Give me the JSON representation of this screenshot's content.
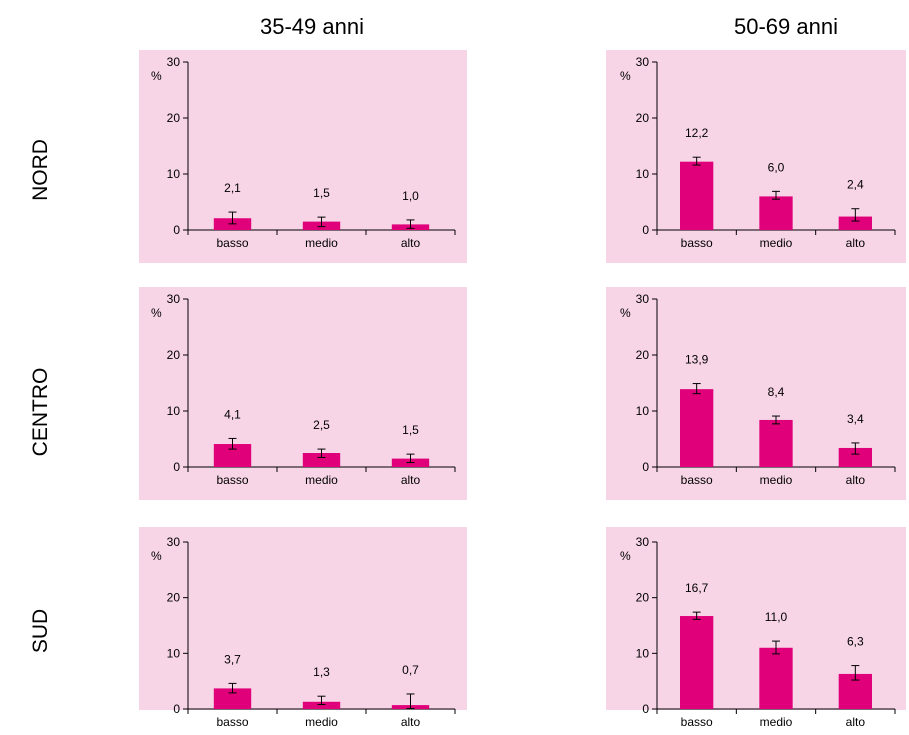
{
  "column_titles": [
    "35-49 anni",
    "50-69 anni"
  ],
  "row_labels": [
    "NORD",
    "CENTRO",
    "SUD"
  ],
  "colors": {
    "panel_bg": "#f7d5e7",
    "bar": "#e0007a",
    "axis": "#000000"
  },
  "chart_data": [
    {
      "type": "bar",
      "row": "NORD",
      "column": "35-49 anni",
      "unit": "%",
      "ylim": [
        0,
        30
      ],
      "yticks": [
        0,
        10,
        20,
        30
      ],
      "categories": [
        "basso",
        "medio",
        "alto"
      ],
      "values": [
        2.1,
        1.5,
        1.0
      ],
      "labels": [
        "2,1",
        "1,5",
        "1,0"
      ],
      "ci": [
        [
          1.1,
          3.2
        ],
        [
          0.6,
          2.3
        ],
        [
          0.3,
          1.8
        ]
      ]
    },
    {
      "type": "bar",
      "row": "NORD",
      "column": "50-69 anni",
      "unit": "%",
      "ylim": [
        0,
        30
      ],
      "yticks": [
        0,
        10,
        20,
        30
      ],
      "categories": [
        "basso",
        "medio",
        "alto"
      ],
      "values": [
        12.2,
        6.0,
        2.4
      ],
      "labels": [
        "12,2",
        "6,0",
        "2,4"
      ],
      "ci": [
        [
          11.6,
          13.0
        ],
        [
          5.5,
          6.9
        ],
        [
          1.6,
          3.8
        ]
      ]
    },
    {
      "type": "bar",
      "row": "CENTRO",
      "column": "35-49 anni",
      "unit": "%",
      "ylim": [
        0,
        30
      ],
      "yticks": [
        0,
        10,
        20,
        30
      ],
      "categories": [
        "basso",
        "medio",
        "alto"
      ],
      "values": [
        4.1,
        2.5,
        1.5
      ],
      "labels": [
        "4,1",
        "2,5",
        "1,5"
      ],
      "ci": [
        [
          3.2,
          5.1
        ],
        [
          1.7,
          3.2
        ],
        [
          0.8,
          2.3
        ]
      ]
    },
    {
      "type": "bar",
      "row": "CENTRO",
      "column": "50-69 anni",
      "unit": "%",
      "ylim": [
        0,
        30
      ],
      "yticks": [
        0,
        10,
        20,
        30
      ],
      "categories": [
        "basso",
        "medio",
        "alto"
      ],
      "values": [
        13.9,
        8.4,
        3.4
      ],
      "labels": [
        "13,9",
        "8,4",
        "3,4"
      ],
      "ci": [
        [
          13.1,
          14.9
        ],
        [
          7.7,
          9.1
        ],
        [
          2.3,
          4.3
        ]
      ]
    },
    {
      "type": "bar",
      "row": "SUD",
      "column": "35-49 anni",
      "unit": "%",
      "ylim": [
        0,
        30
      ],
      "yticks": [
        0,
        10,
        20,
        30
      ],
      "categories": [
        "basso",
        "medio",
        "alto"
      ],
      "values": [
        3.7,
        1.3,
        0.7
      ],
      "labels": [
        "3,7",
        "1,3",
        "0,7"
      ],
      "ci": [
        [
          2.9,
          4.6
        ],
        [
          0.8,
          2.3
        ],
        [
          0.1,
          2.7
        ]
      ]
    },
    {
      "type": "bar",
      "row": "SUD",
      "column": "50-69 anni",
      "unit": "%",
      "ylim": [
        0,
        30
      ],
      "yticks": [
        0,
        10,
        20,
        30
      ],
      "categories": [
        "basso",
        "medio",
        "alto"
      ],
      "values": [
        16.7,
        11.0,
        6.3
      ],
      "labels": [
        "16,7",
        "11,0",
        "6,3"
      ],
      "ci": [
        [
          16.1,
          17.4
        ],
        [
          9.9,
          12.2
        ],
        [
          5.2,
          7.8
        ]
      ]
    }
  ]
}
